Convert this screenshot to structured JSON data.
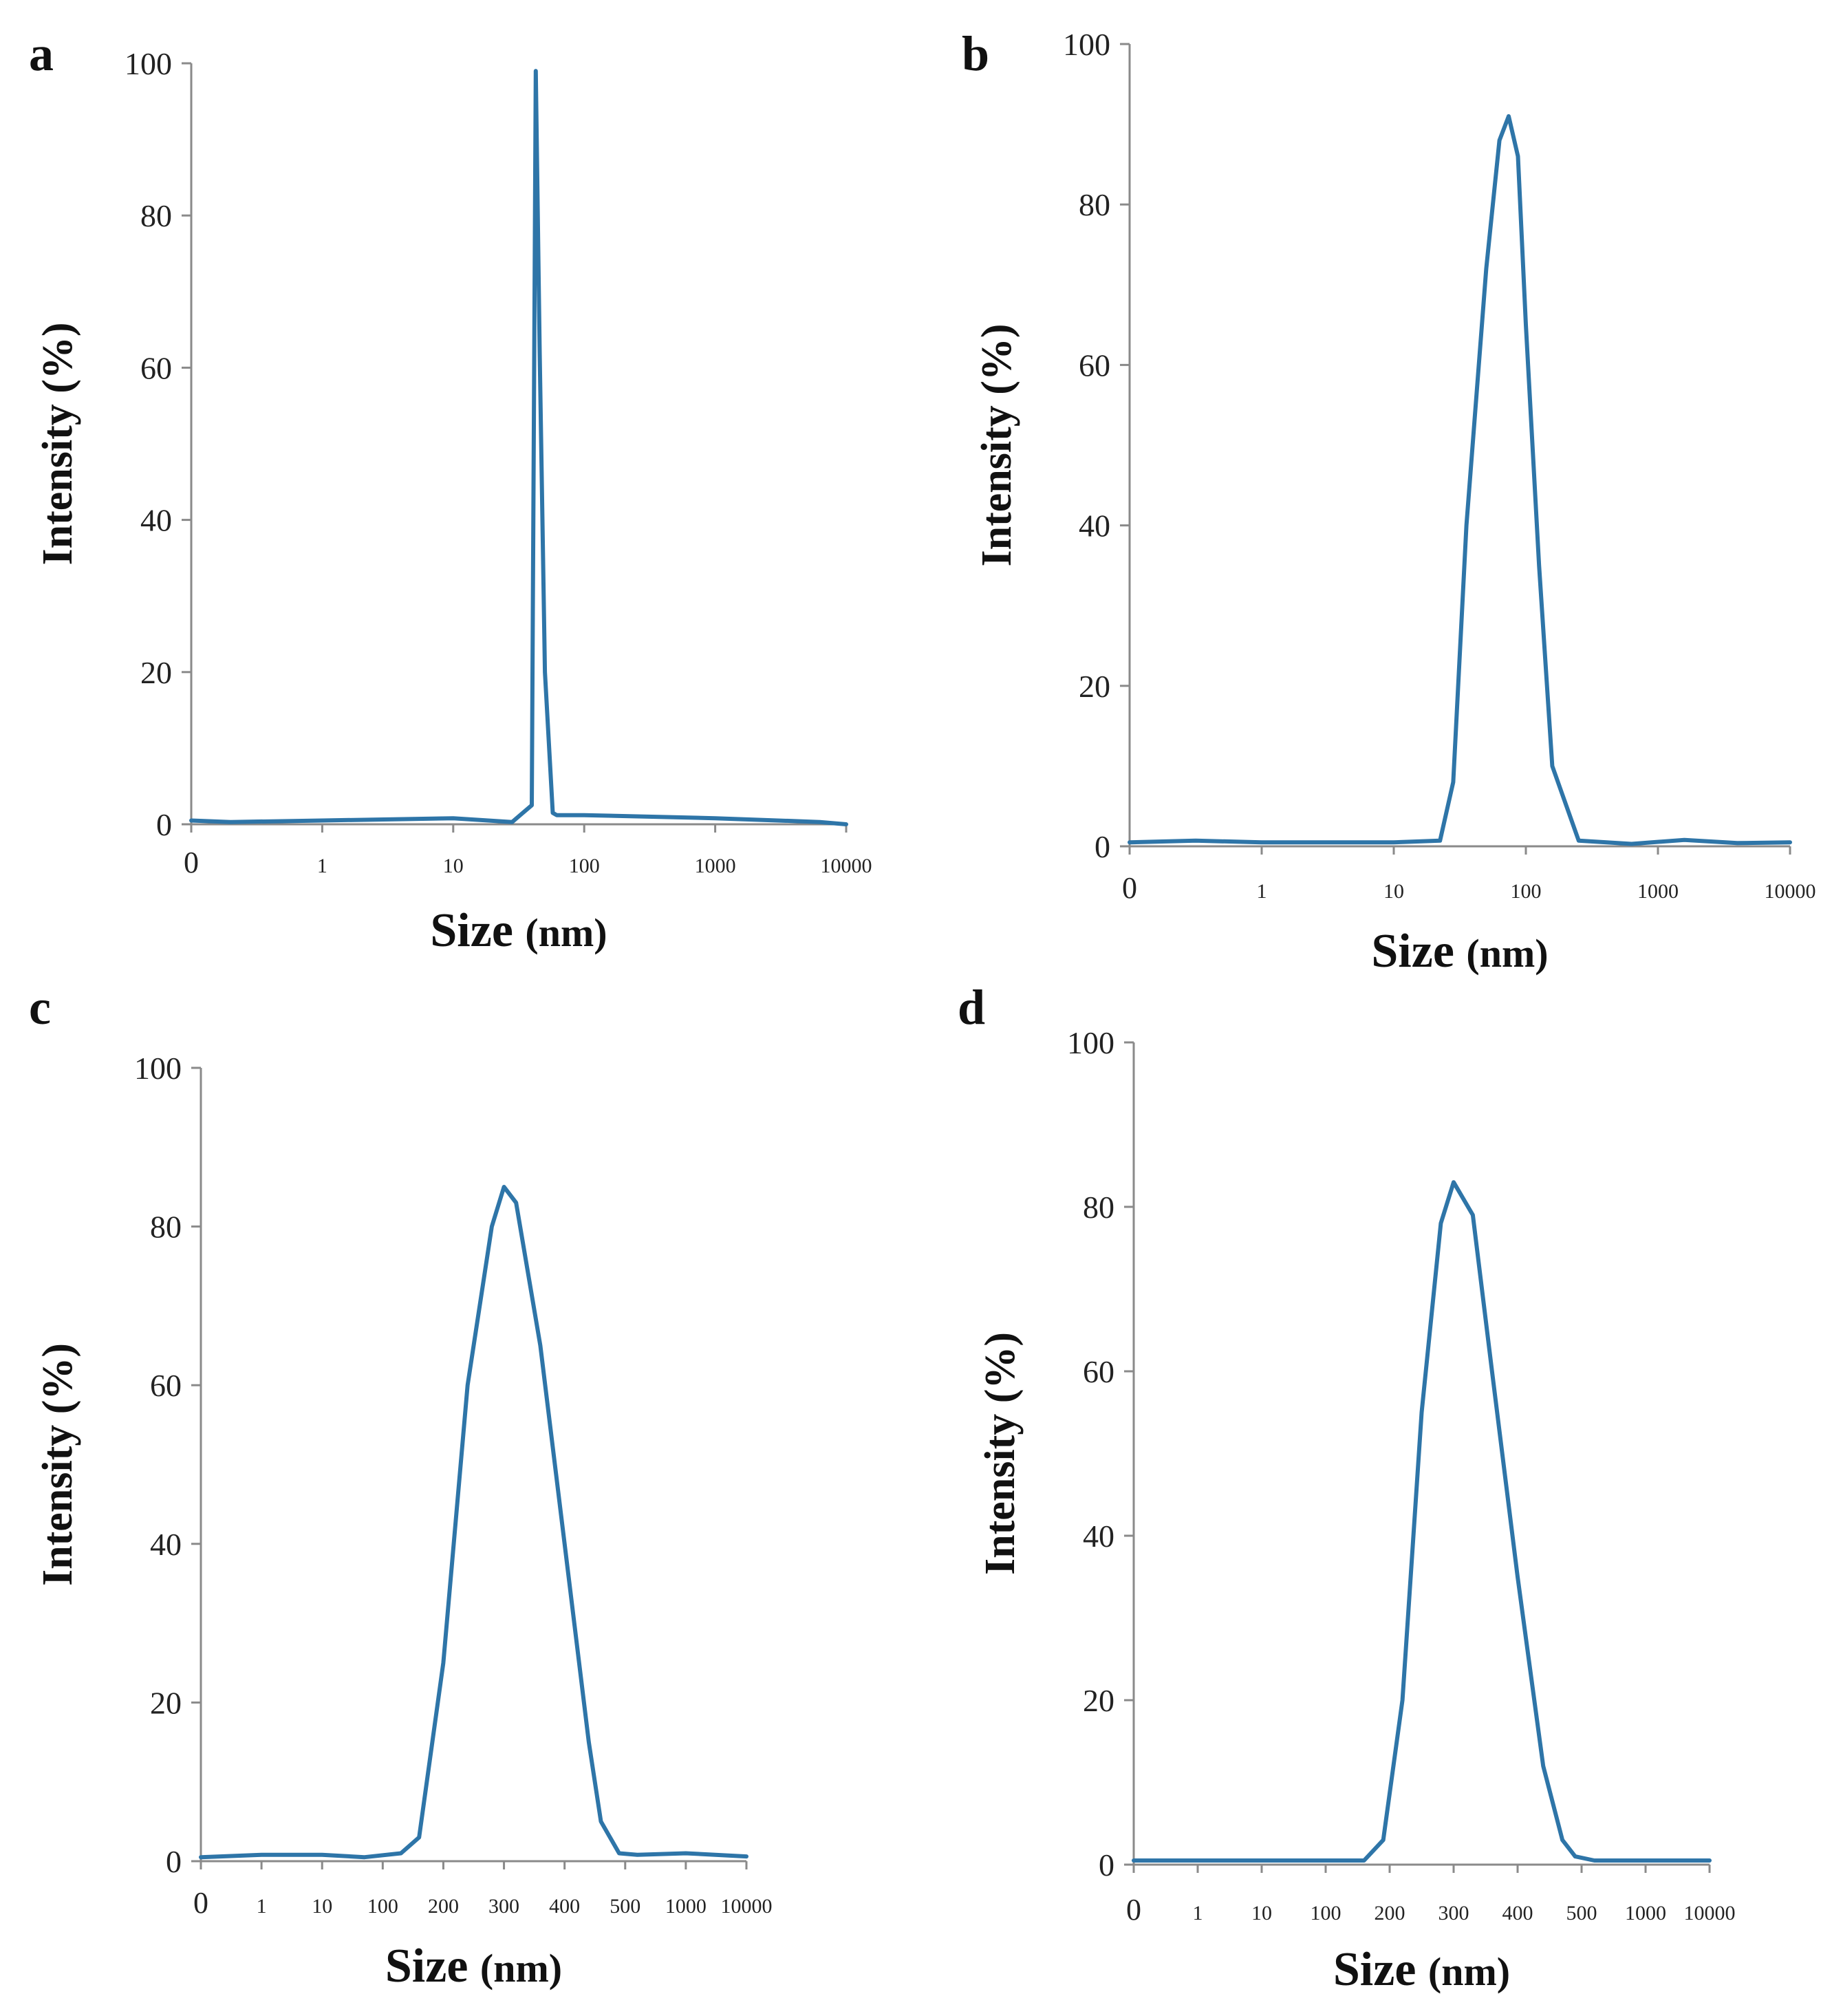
{
  "figure": {
    "line_color": "#2e75a8",
    "axis_color": "#8a8a8a"
  },
  "chart_data": [
    {
      "panel": "a",
      "type": "line",
      "title": "",
      "xlabel_main": "Size",
      "xlabel_unit": "(nm)",
      "ylabel": "Intensity (%)",
      "ylim": [
        0,
        100
      ],
      "yticks": [
        "0",
        "20",
        "40",
        "60",
        "80",
        "100"
      ],
      "xtick_labels": [
        "0",
        "1",
        "10",
        "100",
        "1000",
        "10000"
      ],
      "xtick_positions": [
        0,
        1,
        2,
        3,
        4,
        5
      ],
      "xlim": [
        0,
        5
      ],
      "x": [
        0,
        0.3,
        1,
        2,
        2.45,
        2.6,
        2.63,
        2.66,
        2.7,
        2.76,
        2.79,
        3,
        4,
        4.8,
        5
      ],
      "y": [
        0.5,
        0.3,
        0.5,
        0.8,
        0.3,
        2.5,
        99,
        62,
        20,
        1.5,
        1.2,
        1.2,
        0.8,
        0.3,
        0
      ]
    },
    {
      "panel": "b",
      "type": "line",
      "title": "",
      "xlabel_main": "Size",
      "xlabel_unit": "(nm)",
      "ylabel": "Intensity (%)",
      "ylim": [
        0,
        100
      ],
      "yticks": [
        "0",
        "20",
        "40",
        "60",
        "80",
        "100"
      ],
      "xtick_labels": [
        "0",
        "1",
        "10",
        "100",
        "1000",
        "10000"
      ],
      "xtick_positions": [
        0,
        1,
        2,
        3,
        4,
        5
      ],
      "xlim": [
        0,
        5
      ],
      "x": [
        0,
        0.5,
        1,
        2,
        2.35,
        2.45,
        2.55,
        2.7,
        2.8,
        2.87,
        2.94,
        3.0,
        3.1,
        3.2,
        3.4,
        3.8,
        4.2,
        4.6,
        5
      ],
      "y": [
        0.5,
        0.7,
        0.5,
        0.5,
        0.7,
        8,
        40,
        72,
        88,
        91,
        86,
        65,
        35,
        10,
        0.7,
        0.3,
        0.8,
        0.4,
        0.5
      ]
    },
    {
      "panel": "c",
      "type": "line",
      "title": "",
      "xlabel_main": "Size",
      "xlabel_unit": "(nm)",
      "ylabel": "Intensity (%)",
      "ylim": [
        0,
        100
      ],
      "yticks": [
        "0",
        "20",
        "40",
        "60",
        "80",
        "100"
      ],
      "xtick_labels": [
        "0",
        "1",
        "10",
        "100",
        "200",
        "300",
        "400",
        "500",
        "1000",
        "10000"
      ],
      "xtick_positions": [
        0,
        1,
        2,
        3,
        4,
        5,
        6,
        7,
        8,
        9
      ],
      "xlim": [
        0,
        9
      ],
      "x": [
        0,
        1,
        2,
        2.7,
        3.3,
        3.6,
        4,
        4.4,
        4.8,
        5,
        5.2,
        5.6,
        6,
        6.4,
        6.6,
        6.9,
        7.2,
        8,
        9
      ],
      "y": [
        0.5,
        0.8,
        0.8,
        0.5,
        1,
        3,
        25,
        60,
        80,
        85,
        83,
        65,
        40,
        15,
        5,
        1,
        0.8,
        1,
        0.6
      ]
    },
    {
      "panel": "d",
      "type": "line",
      "title": "",
      "xlabel_main": "Size",
      "xlabel_unit": "(nm)",
      "ylabel": "Intensity (%)",
      "ylim": [
        0,
        100
      ],
      "yticks": [
        "0",
        "20",
        "40",
        "60",
        "80",
        "100"
      ],
      "xtick_labels": [
        "0",
        "1",
        "10",
        "100",
        "200",
        "300",
        "400",
        "500",
        "1000",
        "10000"
      ],
      "xtick_positions": [
        0,
        1,
        2,
        3,
        4,
        5,
        6,
        7,
        8,
        9
      ],
      "xlim": [
        0,
        9
      ],
      "x": [
        0,
        1,
        2,
        3,
        3.6,
        3.9,
        4.2,
        4.5,
        4.8,
        5,
        5.3,
        5.6,
        6,
        6.4,
        6.7,
        6.9,
        7.2,
        8,
        9
      ],
      "y": [
        0.5,
        0.5,
        0.5,
        0.5,
        0.5,
        3,
        20,
        55,
        78,
        83,
        79,
        60,
        35,
        12,
        3,
        1,
        0.5,
        0.5,
        0.5
      ]
    }
  ]
}
